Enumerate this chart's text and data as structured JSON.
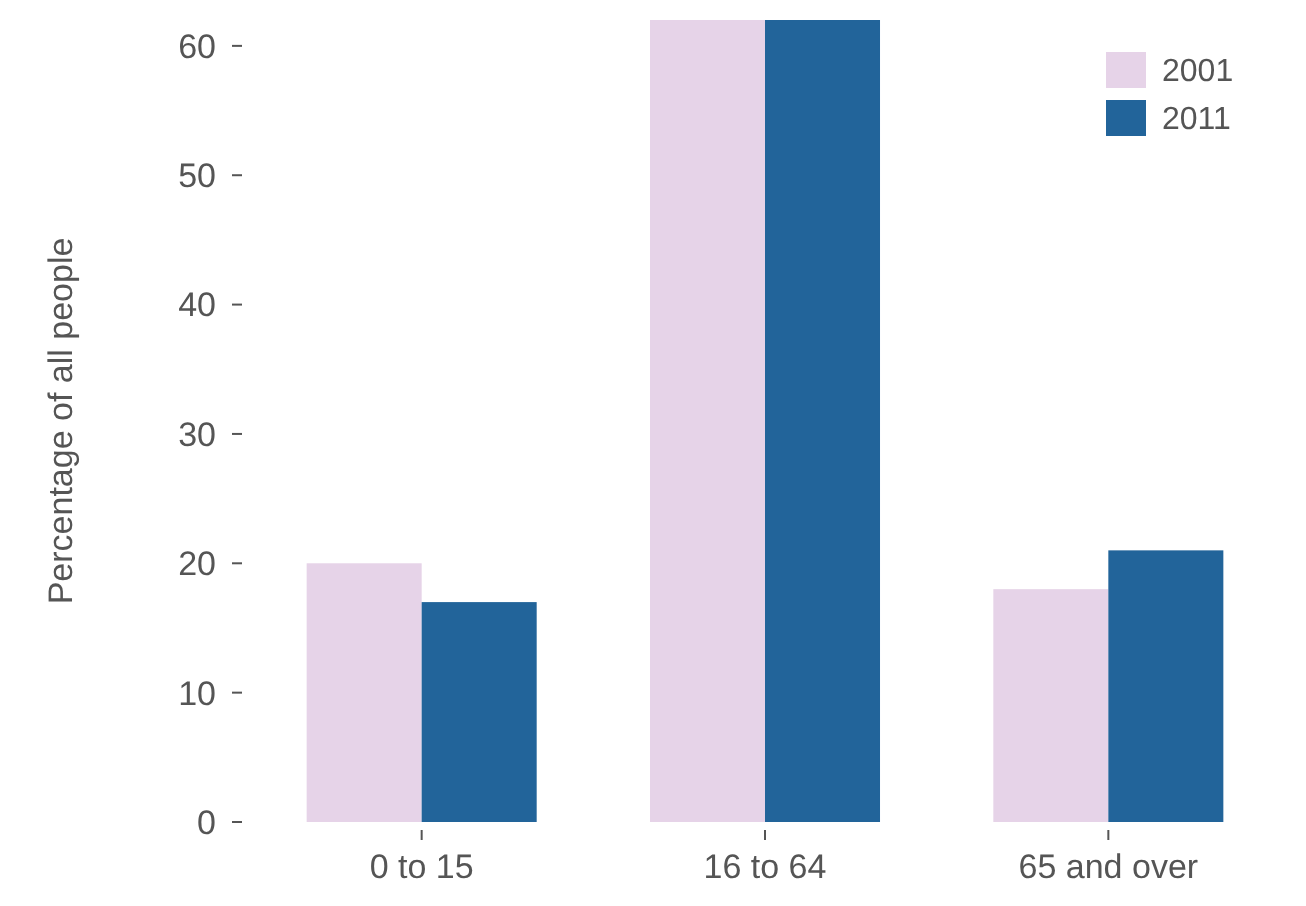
{
  "chart_data": {
    "type": "bar",
    "ylabel": "Percentage of all people",
    "categories": [
      "0 to 15",
      "16 to 64",
      "65 and over"
    ],
    "series": [
      {
        "name": "2001",
        "color": "#e6d3e8",
        "values": [
          20,
          62,
          18
        ]
      },
      {
        "name": "2011",
        "color": "#22649a",
        "values": [
          17,
          62,
          21
        ]
      }
    ],
    "ylim": [
      0,
      62
    ],
    "yticks": [
      0,
      10,
      20,
      30,
      40,
      50,
      60
    ],
    "grid": false,
    "legend": "top right"
  }
}
